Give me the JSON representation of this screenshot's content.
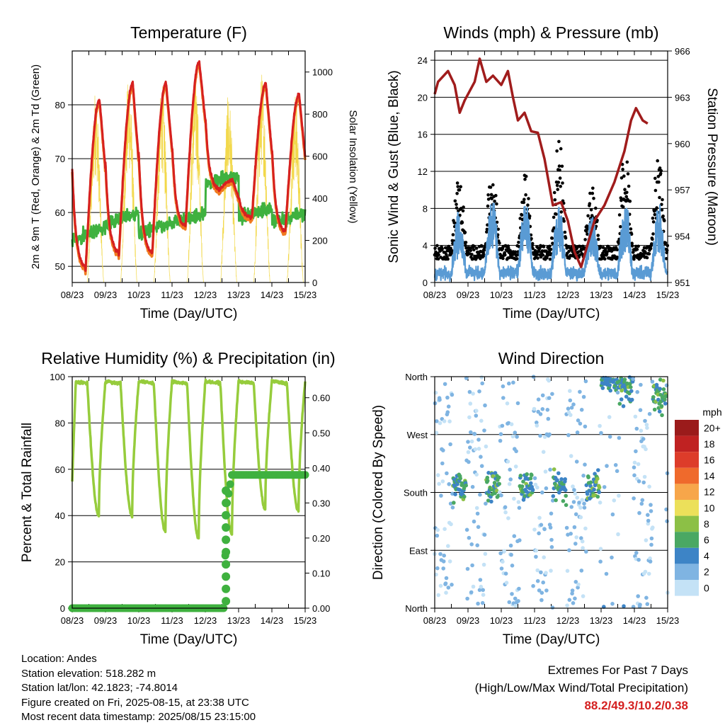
{
  "figure": {
    "x_ticks": [
      "08/23",
      "09/23",
      "10/23",
      "11/23",
      "12/23",
      "13/23",
      "14/23",
      "15/23"
    ],
    "x_label": "Time (Day/UTC)"
  },
  "chart_data": [
    {
      "id": "temperature",
      "type": "line",
      "title": "Temperature (F)",
      "xlabel": "Time (Day/UTC)",
      "ylabel": "2m & 9m T (Red, Orange) & 2m Td (Green)",
      "y2label": "Solar Insolation (Yellow)",
      "ylim": [
        47,
        90
      ],
      "y2lim": [
        0,
        1100
      ],
      "yticks": [
        50,
        60,
        70,
        80
      ],
      "y2ticks": [
        0,
        200,
        400,
        600,
        800,
        1000
      ],
      "grid": true,
      "colors": {
        "t2m": "#d62020",
        "t9m": "#f07a20",
        "td": "#3fb13f",
        "solar": "#f2d84a"
      },
      "days": {
        "tmax": [
          81,
          84,
          84,
          88,
          66,
          84,
          82
        ],
        "tmin": [
          49.3,
          52,
          52,
          57,
          64,
          59,
          56
        ],
        "td_base": [
          55,
          58,
          56,
          58,
          65,
          59,
          58
        ],
        "solar_peak": [
          920,
          980,
          950,
          1000,
          900,
          1000,
          900
        ]
      },
      "series": [
        {
          "name": "2m T",
          "axis": "left"
        },
        {
          "name": "9m T",
          "axis": "left"
        },
        {
          "name": "2m Td",
          "axis": "left"
        },
        {
          "name": "Solar Insolation",
          "axis": "right"
        }
      ]
    },
    {
      "id": "winds",
      "type": "scatter",
      "title": "Winds (mph) & Pressure (mb)",
      "xlabel": "Time (Day/UTC)",
      "ylabel": "Sonic Wind & Gust (Blue, Black)",
      "y2label": "Station Pressure (Maroon)",
      "ylim": [
        0,
        25
      ],
      "y2lim": [
        951,
        966
      ],
      "yticks": [
        0,
        4,
        8,
        12,
        16,
        20,
        24
      ],
      "y2ticks": [
        951,
        954,
        957,
        960,
        963,
        966
      ],
      "grid": true,
      "colors": {
        "wind": "#5a9bd4",
        "gust": "#000000",
        "pressure": "#a01c1c"
      },
      "pressure_path": [
        [
          0,
          963.2
        ],
        [
          0.1,
          964.0
        ],
        [
          0.4,
          964.7
        ],
        [
          0.6,
          963.8
        ],
        [
          0.75,
          962.0
        ],
        [
          0.9,
          962.8
        ],
        [
          1.2,
          964.0
        ],
        [
          1.35,
          965.5
        ],
        [
          1.55,
          964.0
        ],
        [
          1.75,
          964.4
        ],
        [
          2.0,
          963.8
        ],
        [
          2.2,
          964.7
        ],
        [
          2.35,
          963.0
        ],
        [
          2.5,
          961.5
        ],
        [
          2.7,
          962.0
        ],
        [
          2.9,
          960.8
        ],
        [
          3.1,
          960.7
        ],
        [
          3.3,
          959.0
        ],
        [
          3.55,
          956.0
        ],
        [
          3.8,
          956.2
        ],
        [
          4.0,
          955.0
        ],
        [
          4.2,
          953.0
        ],
        [
          4.4,
          952.0
        ],
        [
          4.6,
          953.5
        ],
        [
          4.8,
          955.0
        ],
        [
          5.1,
          956.0
        ],
        [
          5.4,
          957.5
        ],
        [
          5.7,
          959.5
        ],
        [
          5.9,
          961.5
        ],
        [
          6.05,
          962.3
        ],
        [
          6.25,
          961.5
        ],
        [
          6.4,
          961.3
        ]
      ],
      "day_gust_peak": [
        12,
        12.5,
        12.5,
        16,
        11,
        15,
        14
      ],
      "day_wind_peak": [
        7.5,
        9,
        8.5,
        8.5,
        7,
        9,
        8
      ],
      "series": [
        {
          "name": "Sonic Wind",
          "axis": "left"
        },
        {
          "name": "Gust",
          "axis": "left"
        },
        {
          "name": "Station Pressure",
          "axis": "right"
        }
      ]
    },
    {
      "id": "rh",
      "type": "line",
      "title": "Relative Humidity (%) & Precipitation (in)",
      "xlabel": "Time (Day/UTC)",
      "ylabel": "Percent & Total Rainfall",
      "ylim": [
        0,
        100
      ],
      "y2lim": [
        0,
        0.66
      ],
      "yticks": [
        0,
        20,
        40,
        60,
        80,
        100
      ],
      "y2ticks": [
        "0.00",
        "0.10",
        "0.20",
        "0.30",
        "0.40",
        "0.50",
        "0.60"
      ],
      "grid": true,
      "colors": {
        "rh": "#96cc3c",
        "precip": "#3fb13f"
      },
      "day_rh_min": [
        40,
        40,
        33,
        30,
        32,
        43,
        42
      ],
      "precip_total": 0.38,
      "series": [
        {
          "name": "Relative Humidity",
          "axis": "left"
        },
        {
          "name": "Total Precipitation",
          "axis": "right"
        }
      ]
    },
    {
      "id": "direction",
      "type": "scatter",
      "title": "Wind Direction",
      "xlabel": "Time (Day/UTC)",
      "ylabel": "Direction (Colored By Speed)",
      "yticks": [
        "North",
        "East",
        "South",
        "West",
        "North"
      ],
      "ylim": [
        0,
        360
      ],
      "grid": true,
      "colorbar": {
        "title": "mph",
        "labels": [
          "20+",
          "18",
          "16",
          "14",
          "12",
          "10",
          "8",
          "6",
          "4",
          "2",
          "0"
        ],
        "colors": [
          "#9b1b1b",
          "#c02222",
          "#dd3c2a",
          "#ef6a2c",
          "#f7a64a",
          "#ece05a",
          "#8cc046",
          "#4aa863",
          "#3d84c6",
          "#7fb4e2",
          "#c4e2f6"
        ]
      },
      "series": [
        {
          "name": "Wind Direction"
        }
      ]
    }
  ],
  "info": {
    "location": "Location: Andes",
    "elevation": "Station elevation: 518.282 m",
    "latlon": "Station lat/lon: 42.1823; -74.8014",
    "created": "Figure created on Fri, 2025-08-15, at 23:38 UTC",
    "recent": "Most recent data timestamp: 2025/08/15 23:15:00"
  },
  "extremes": {
    "heading": "Extremes For Past 7 Days",
    "subheading": "(High/Low/Max Wind/Total Precipitation)",
    "values": "88.2/49.3/10.2/0.38"
  }
}
